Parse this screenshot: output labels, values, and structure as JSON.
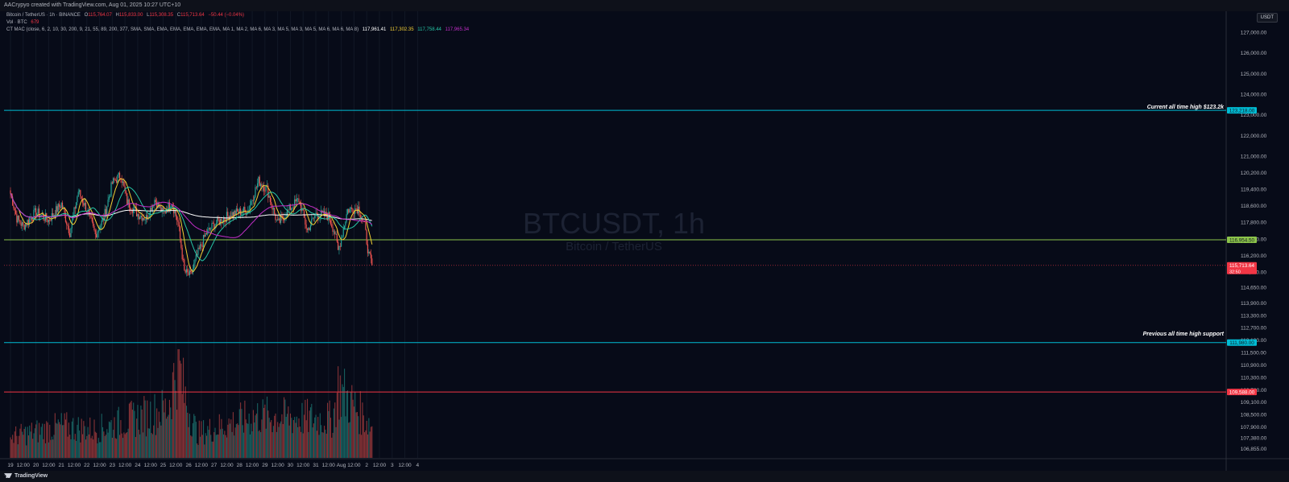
{
  "header": {
    "attribution": "AACrypyo created with TradingView.com, Aug 01, 2025 10:27 UTC+10"
  },
  "legend": {
    "symbol_line": "Bitcoin / TetherUS · 1h · BINANCE",
    "ohlc": {
      "o_label": "O",
      "o": "115,764.07",
      "h_label": "H",
      "h": "115,833.00",
      "l_label": "L",
      "l": "115,308.35",
      "c_label": "C",
      "c": "115,713.64",
      "change": "−50.44 (−0.04%)"
    },
    "vol_label": "Vol · BTC",
    "vol_value": "679",
    "indicator_label": "CT MAC (close, 6, 2, 10, 30, 200, 9, 21, 55, 89, 200, 377, SMA, SMA, EMA, EMA, EMA, EMA, EMA, MA 1, MA 2, MA 6, MA 3, MA 5, MA 3, MA 5, MA 6, MA 6, MA 8)",
    "indicator_values": [
      "117,961.41",
      "117,302.35",
      "117,758.44",
      "117,965.34"
    ],
    "indicator_colors": [
      "#ffffff",
      "#f5d033",
      "#26c6a6",
      "#c22ec7"
    ]
  },
  "watermark": {
    "symbol": "BTCUSDT, 1h",
    "name": "Bitcoin / TetherUS"
  },
  "currency_button": "USDT",
  "annotations": {
    "ath_label": "Current all time high $123.2k",
    "ath_price": "123,218.00",
    "prev_ath_label": "Previous all time high support",
    "prev_ath_price": "111,980.00",
    "green_price": "116,954.50",
    "red_price": "109,588.00",
    "last_price": "115,713.64",
    "countdown": "32:50"
  },
  "footer": {
    "brand": "TradingView"
  },
  "chart_data": {
    "type": "candlestick",
    "interval": "1h",
    "title": "Bitcoin / TetherUS · 1h · BINANCE",
    "y_axis": {
      "ylim": [
        106400,
        127700
      ],
      "tick_labels": [
        "127,000.00",
        "126,000.00",
        "125,000.00",
        "124,000.00",
        "123,000.00",
        "122,000.00",
        "121,000.00",
        "120,200.00",
        "119,400.00",
        "118,600.00",
        "117,800.00",
        "117,000.00",
        "116,200.00",
        "115,400.00",
        "114,650.00",
        "113,900.00",
        "113,300.00",
        "112,700.00",
        "112,100.00",
        "111,500.00",
        "110,900.00",
        "110,300.00",
        "109,700.00",
        "109,100.00",
        "108,500.00",
        "107,900.00",
        "107,380.00",
        "106,855.00"
      ]
    },
    "x_axis": {
      "tick_labels": [
        "19",
        "12:00",
        "20",
        "12:00",
        "21",
        "12:00",
        "22",
        "12:00",
        "23",
        "12:00",
        "24",
        "12:00",
        "25",
        "12:00",
        "26",
        "12:00",
        "27",
        "12:00",
        "28",
        "12:00",
        "29",
        "12:00",
        "30",
        "12:00",
        "31",
        "12:00",
        "Aug",
        "12:00",
        "2",
        "12:00",
        "3",
        "12:00",
        "4"
      ]
    },
    "horizontal_levels": [
      {
        "price": 123218,
        "color": "#00bcd4",
        "label": "Current all time high $123.2k"
      },
      {
        "price": 116954.5,
        "color": "#8bc34a"
      },
      {
        "price": 111980,
        "color": "#00bcd4",
        "label": "Previous all time high support"
      },
      {
        "price": 109588,
        "color": "#f23645"
      }
    ],
    "close_anchors": [
      {
        "hour": 0,
        "close": 119200
      },
      {
        "hour": 6,
        "close": 118000
      },
      {
        "hour": 12,
        "close": 117600
      },
      {
        "hour": 24,
        "close": 118300
      },
      {
        "hour": 36,
        "close": 117900
      },
      {
        "hour": 48,
        "close": 118700
      },
      {
        "hour": 56,
        "close": 117300
      },
      {
        "hour": 64,
        "close": 119300
      },
      {
        "hour": 72,
        "close": 118400
      },
      {
        "hour": 80,
        "close": 117200
      },
      {
        "hour": 88,
        "close": 118000
      },
      {
        "hour": 96,
        "close": 119700
      },
      {
        "hour": 104,
        "close": 120100
      },
      {
        "hour": 110,
        "close": 118800
      },
      {
        "hour": 120,
        "close": 118200
      },
      {
        "hour": 128,
        "close": 118000
      },
      {
        "hour": 136,
        "close": 118900
      },
      {
        "hour": 144,
        "close": 118200
      },
      {
        "hour": 152,
        "close": 118800
      },
      {
        "hour": 158,
        "close": 117800
      },
      {
        "hour": 164,
        "close": 115400
      },
      {
        "hour": 170,
        "close": 115200
      },
      {
        "hour": 176,
        "close": 116200
      },
      {
        "hour": 184,
        "close": 117200
      },
      {
        "hour": 192,
        "close": 117700
      },
      {
        "hour": 208,
        "close": 118200
      },
      {
        "hour": 224,
        "close": 118400
      },
      {
        "hour": 234,
        "close": 119800
      },
      {
        "hour": 242,
        "close": 119400
      },
      {
        "hour": 252,
        "close": 117700
      },
      {
        "hour": 264,
        "close": 118500
      },
      {
        "hour": 272,
        "close": 118900
      },
      {
        "hour": 280,
        "close": 117400
      },
      {
        "hour": 288,
        "close": 118200
      },
      {
        "hour": 300,
        "close": 118100
      },
      {
        "hour": 306,
        "close": 117300
      },
      {
        "hour": 309,
        "close": 116400
      },
      {
        "hour": 318,
        "close": 118400
      },
      {
        "hour": 328,
        "close": 118500
      },
      {
        "hour": 334,
        "close": 117600
      },
      {
        "hour": 338,
        "close": 116200
      },
      {
        "hour": 341,
        "close": 115714
      }
    ],
    "volume_anchors": [
      {
        "hour": 0,
        "vol": 30
      },
      {
        "hour": 48,
        "vol": 45
      },
      {
        "hour": 80,
        "vol": 40
      },
      {
        "hour": 148,
        "vol": 70
      },
      {
        "hour": 158,
        "vol": 140
      },
      {
        "hour": 164,
        "vol": 90
      },
      {
        "hour": 176,
        "vol": 35
      },
      {
        "hour": 232,
        "vol": 60
      },
      {
        "hour": 304,
        "vol": 55
      },
      {
        "hour": 309,
        "vol": 100
      },
      {
        "hour": 341,
        "vol": 45
      }
    ],
    "moving_averages": [
      {
        "color": "#ffffff",
        "period": 200
      },
      {
        "color": "#f5d033",
        "period": 9
      },
      {
        "color": "#26c6a6",
        "period": 21
      },
      {
        "color": "#c22ec7",
        "period": 55
      }
    ],
    "up_color": "#26a69a",
    "down_color": "#ef5350"
  }
}
